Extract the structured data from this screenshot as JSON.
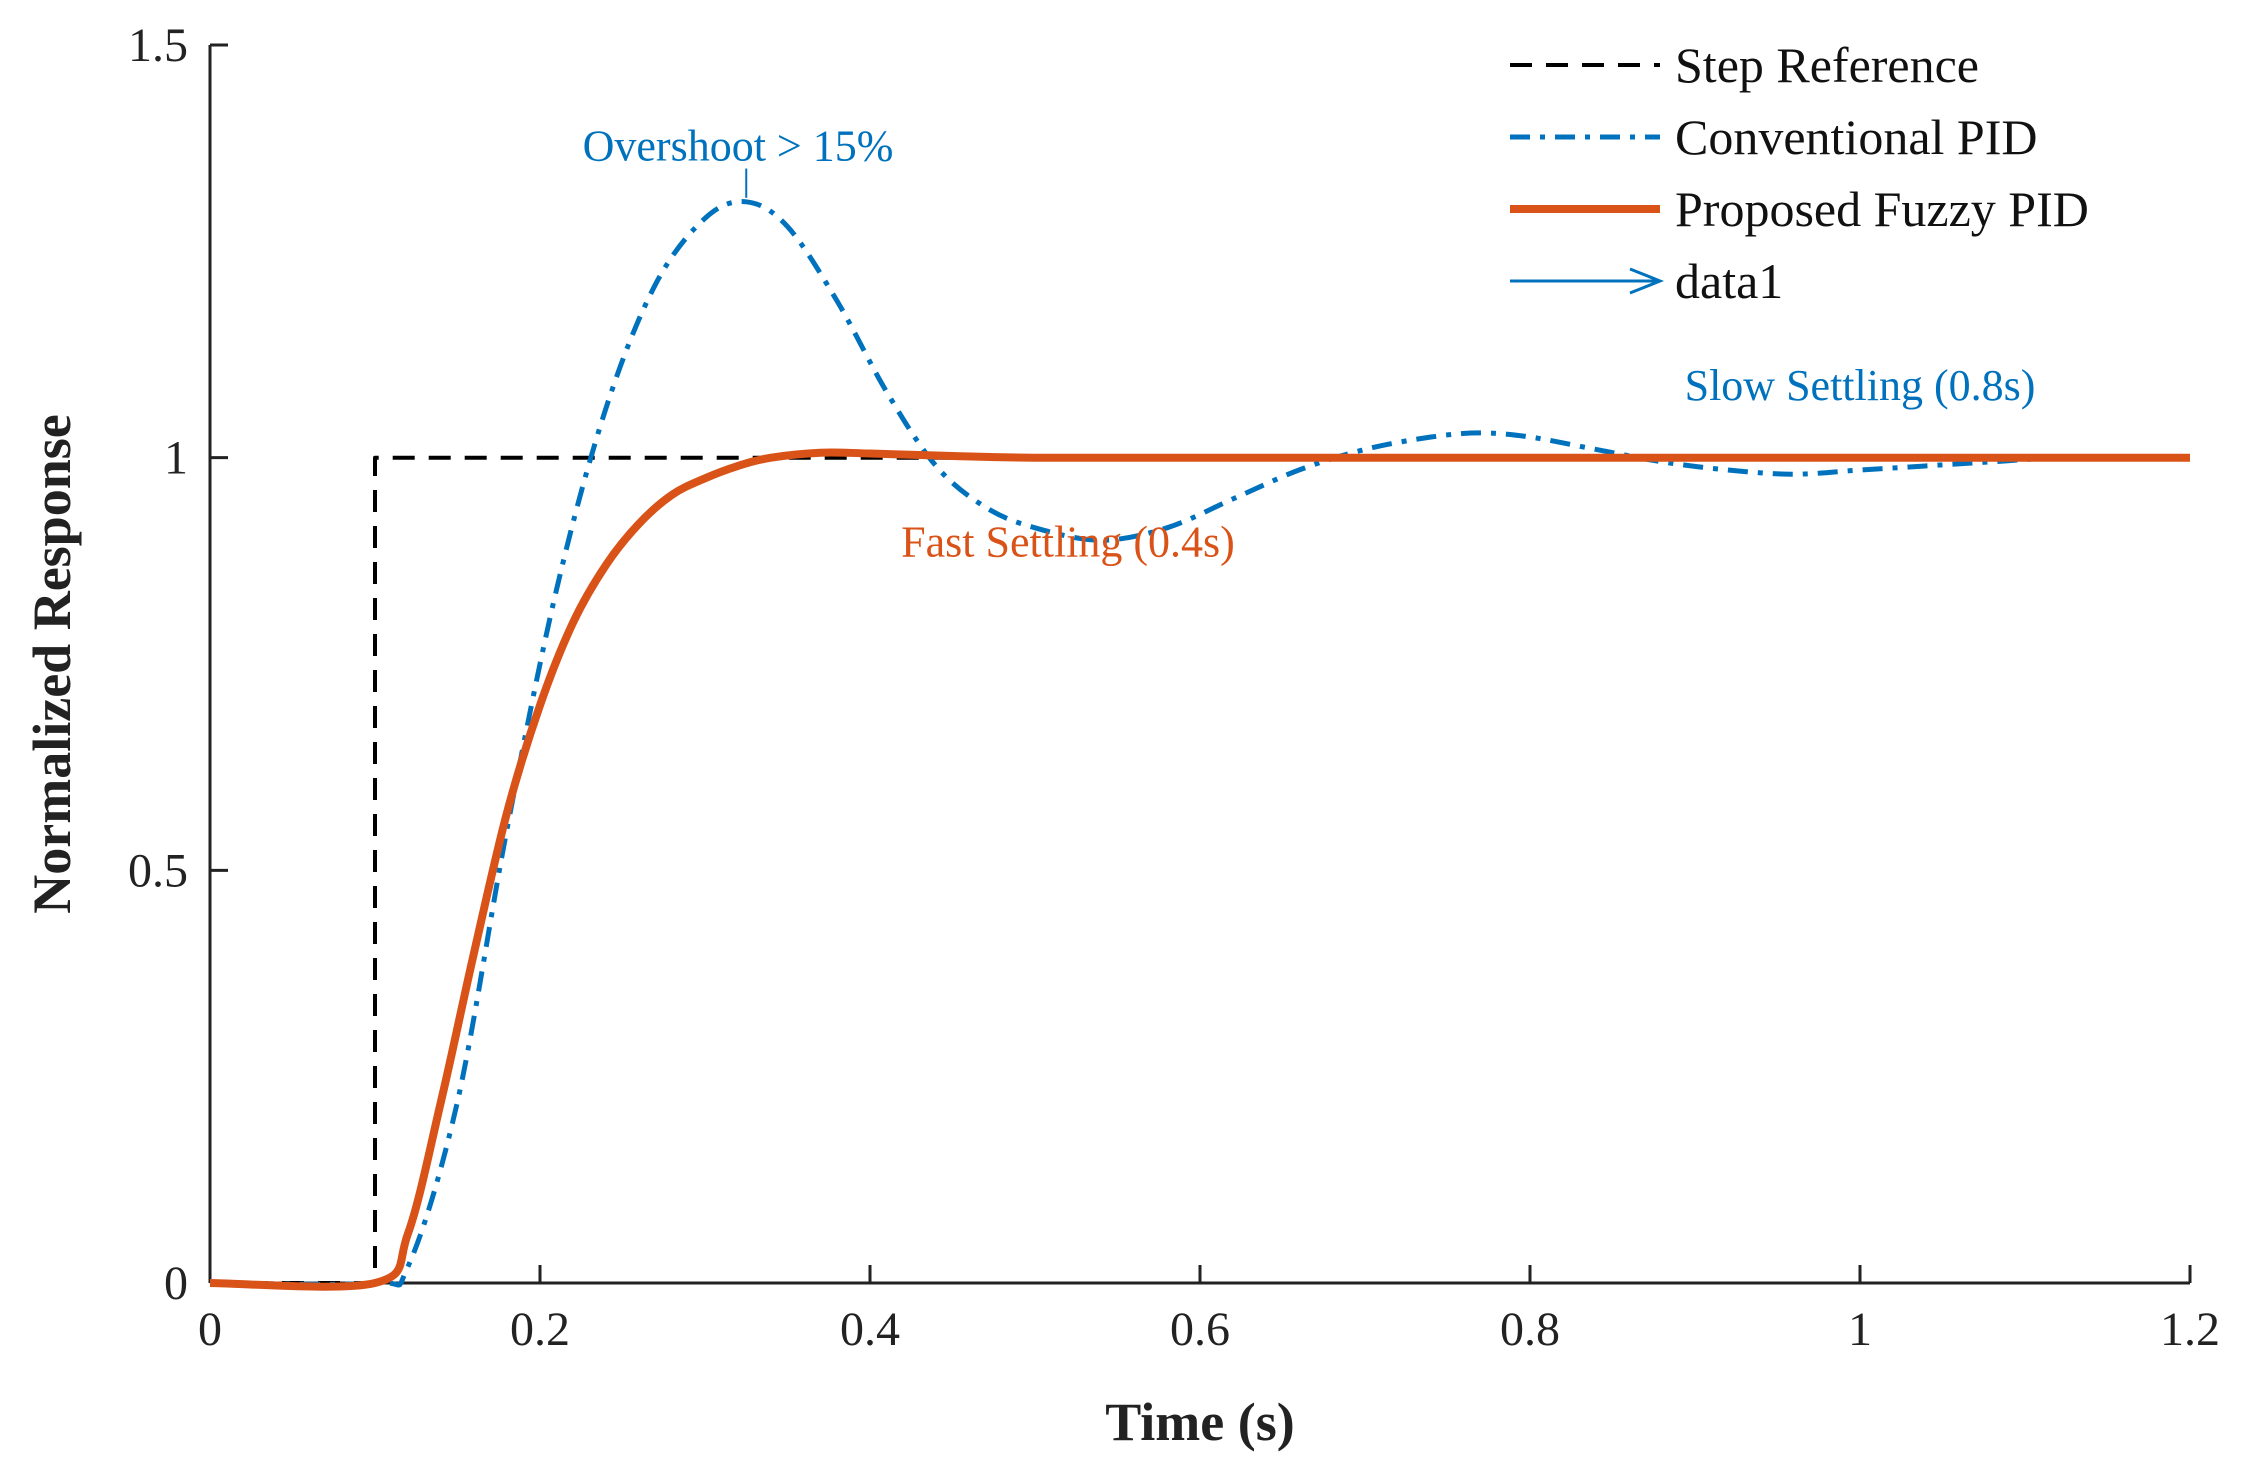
{
  "chart_data": {
    "type": "line",
    "title": "",
    "xlabel": "Time (s)",
    "ylabel": "Normalized Response",
    "xlim": [
      0,
      1.2
    ],
    "ylim": [
      0,
      1.5
    ],
    "xticks": [
      {
        "value": 0,
        "label": "0"
      },
      {
        "value": 0.2,
        "label": "0.2"
      },
      {
        "value": 0.4,
        "label": "0.4"
      },
      {
        "value": 0.6,
        "label": "0.6"
      },
      {
        "value": 0.8,
        "label": "0.8"
      },
      {
        "value": 1.0,
        "label": "1"
      },
      {
        "value": 1.2,
        "label": "1.2"
      }
    ],
    "yticks": [
      {
        "value": 0,
        "label": "0"
      },
      {
        "value": 0.5,
        "label": "0.5"
      },
      {
        "value": 1.0,
        "label": "1"
      },
      {
        "value": 1.5,
        "label": "1.5"
      }
    ],
    "grid": false,
    "legend_position": "top-right",
    "series": [
      {
        "name": "Step Reference",
        "color": "#000000",
        "style": "dashed",
        "x": [
          0,
          0.1,
          0.1,
          1.2
        ],
        "y": [
          0,
          0,
          1,
          1
        ]
      },
      {
        "name": "Conventional PID",
        "color": "#0072BD",
        "style": "dashdot",
        "x": [
          0,
          0.1,
          0.12,
          0.15,
          0.18,
          0.21,
          0.24,
          0.27,
          0.3,
          0.325,
          0.35,
          0.38,
          0.41,
          0.44,
          0.47,
          0.5,
          0.54,
          0.58,
          0.62,
          0.66,
          0.7,
          0.74,
          0.77,
          0.8,
          0.84,
          0.88,
          0.92,
          0.96,
          1.0,
          1.04,
          1.08,
          1.12,
          1.16,
          1.2
        ],
        "y": [
          0,
          0,
          0.02,
          0.22,
          0.55,
          0.84,
          1.06,
          1.21,
          1.29,
          1.31,
          1.28,
          1.19,
          1.08,
          0.99,
          0.94,
          0.915,
          0.9,
          0.915,
          0.95,
          0.985,
          1.01,
          1.025,
          1.03,
          1.025,
          1.01,
          0.995,
          0.985,
          0.98,
          0.985,
          0.99,
          0.995,
          1.0,
          1.0,
          1.0
        ]
      },
      {
        "name": "Proposed Fuzzy PID",
        "color": "#D95319",
        "style": "solid",
        "x": [
          0,
          0.1,
          0.12,
          0.14,
          0.16,
          0.18,
          0.2,
          0.22,
          0.24,
          0.26,
          0.28,
          0.3,
          0.32,
          0.34,
          0.37,
          0.4,
          0.45,
          0.5,
          0.6,
          0.8,
          1.0,
          1.2
        ],
        "y": [
          0,
          0,
          0.06,
          0.22,
          0.4,
          0.57,
          0.7,
          0.8,
          0.87,
          0.92,
          0.955,
          0.975,
          0.99,
          1.0,
          1.006,
          1.005,
          1.002,
          1.0,
          1.0,
          1.0,
          1.0,
          1.0
        ]
      },
      {
        "name": "data1",
        "color": "#0072BD",
        "style": "arrow",
        "x": [],
        "y": []
      }
    ],
    "annotations": [
      {
        "text": "Overshoot > 15%",
        "x": 0.32,
        "y": 1.36,
        "color": "#0072BD",
        "arrow_to": [
          0.325,
          1.31
        ]
      },
      {
        "text": "Slow Settling (0.8s)",
        "x": 1.0,
        "y": 1.07,
        "color": "#0072BD"
      },
      {
        "text": "Fast Settling (0.4s)",
        "x": 0.52,
        "y": 0.88,
        "color": "#D95319"
      }
    ]
  }
}
